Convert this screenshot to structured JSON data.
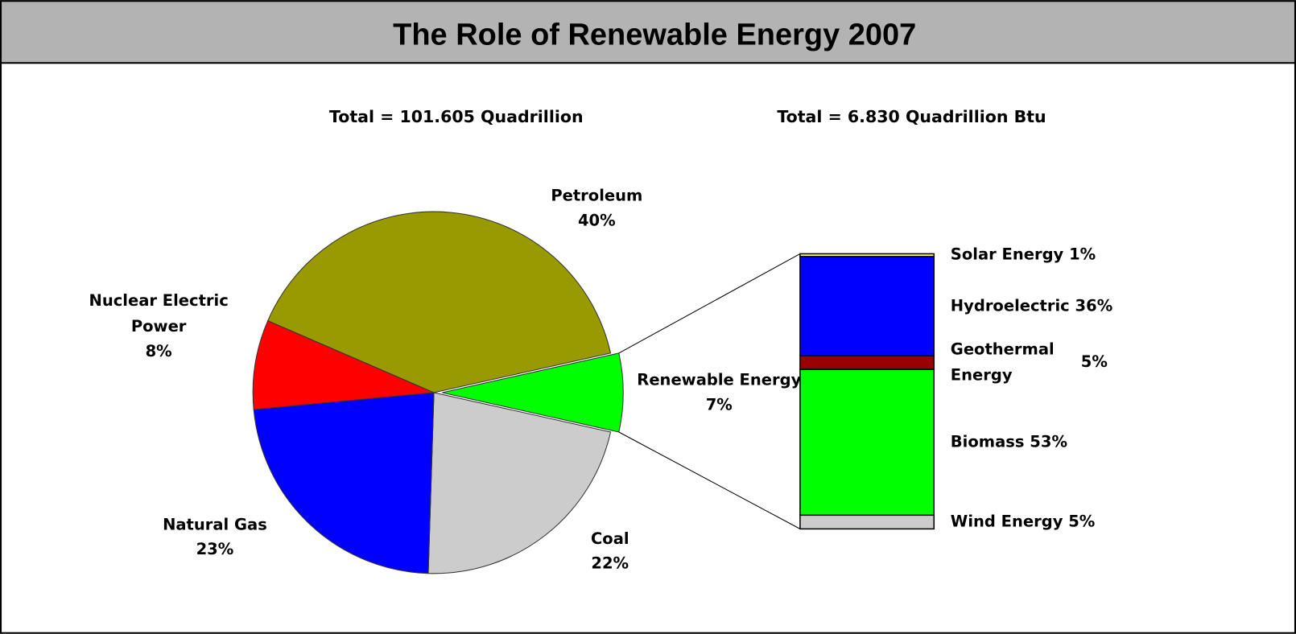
{
  "title": "The Role of Renewable Energy 2007",
  "chart_data": [
    {
      "type": "pie",
      "subtitle": "Total = 101.605 Quadrillion",
      "categories": [
        "Renewable Energy",
        "Coal",
        "Natural Gas",
        "Nuclear Electric Power",
        "Petroleum"
      ],
      "values": [
        7,
        22,
        23,
        8,
        40
      ],
      "value_labels": [
        "7%",
        "22%",
        "23%",
        "8%",
        "40%"
      ],
      "colors": [
        "#00ff00",
        "#cccccc",
        "#0000ff",
        "#ff0000",
        "#999900"
      ]
    },
    {
      "type": "bar",
      "stacked": true,
      "subtitle": "Total = 6.830 Quadrillion Btu",
      "categories": [
        "Wind Energy",
        "Biomass",
        "Geothermal Energy",
        "Hydroelectric",
        "Solar Energy"
      ],
      "values": [
        5,
        53,
        5,
        36,
        1
      ],
      "value_labels": [
        "5%",
        "53%",
        "5%",
        "36%",
        "1%"
      ],
      "colors": [
        "#cccccc",
        "#00ff00",
        "#990000",
        "#0000ff",
        "#ffff66"
      ]
    }
  ]
}
